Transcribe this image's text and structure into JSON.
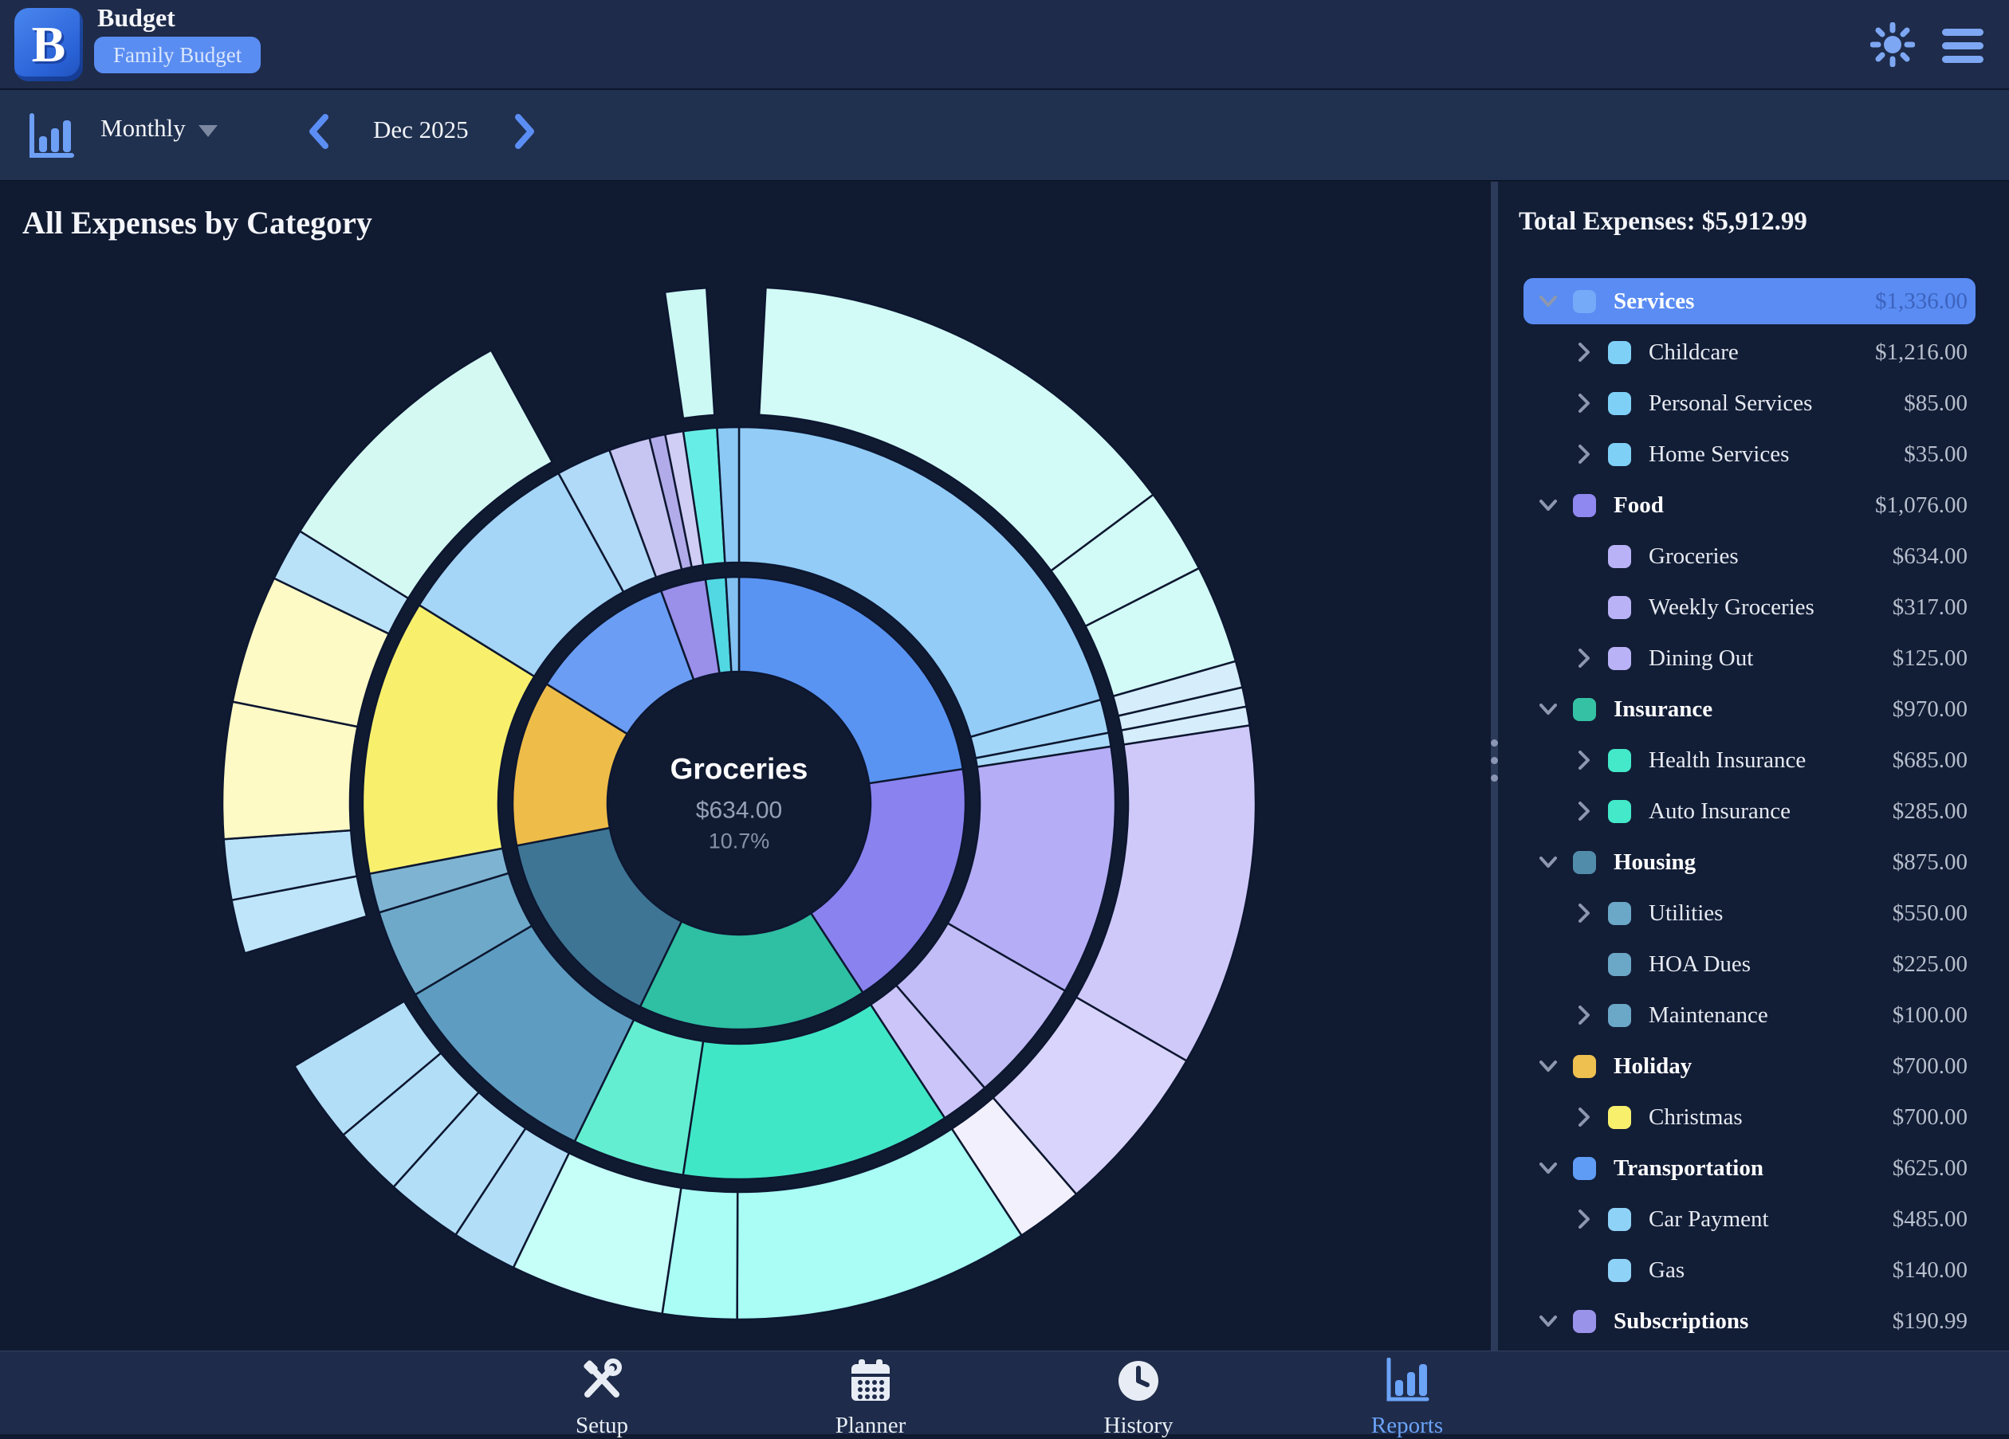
{
  "header": {
    "app_title": "Budget",
    "badge": "Family Budget"
  },
  "toolbar": {
    "view_mode": "Monthly",
    "current_period": "Dec 2025"
  },
  "main": {
    "title": "All Expenses by Category"
  },
  "center_label": {
    "name": "Groceries",
    "value": "$634.00",
    "percent": "10.7%"
  },
  "sidebar": {
    "total_label": "Total Expenses: $5,912.99",
    "rows": [
      {
        "label": "Services",
        "value": "$1,336.00",
        "level": 0,
        "expander": "open",
        "swatch": "#74aaf7",
        "selected": true
      },
      {
        "label": "Childcare",
        "value": "$1,216.00",
        "level": 1,
        "expander": "closed",
        "swatch": "#7fd0f7"
      },
      {
        "label": "Personal Services",
        "value": "$85.00",
        "level": 1,
        "expander": "closed",
        "swatch": "#7fd0f7"
      },
      {
        "label": "Home Services",
        "value": "$35.00",
        "level": 1,
        "expander": "closed",
        "swatch": "#7fd0f7"
      },
      {
        "label": "Food",
        "value": "$1,076.00",
        "level": 0,
        "expander": "open",
        "swatch": "#8f88f0"
      },
      {
        "label": "Groceries",
        "value": "$634.00",
        "level": 1,
        "expander": "none",
        "swatch": "#b9b2f6"
      },
      {
        "label": "Weekly Groceries",
        "value": "$317.00",
        "level": 1,
        "expander": "none",
        "swatch": "#b9b2f6"
      },
      {
        "label": "Dining Out",
        "value": "$125.00",
        "level": 1,
        "expander": "closed",
        "swatch": "#b9b2f6"
      },
      {
        "label": "Insurance",
        "value": "$970.00",
        "level": 0,
        "expander": "open",
        "swatch": "#35c2a4"
      },
      {
        "label": "Health Insurance",
        "value": "$685.00",
        "level": 1,
        "expander": "closed",
        "swatch": "#43e9c9"
      },
      {
        "label": "Auto Insurance",
        "value": "$285.00",
        "level": 1,
        "expander": "closed",
        "swatch": "#43e9c9"
      },
      {
        "label": "Housing",
        "value": "$875.00",
        "level": 0,
        "expander": "open",
        "swatch": "#528cab"
      },
      {
        "label": "Utilities",
        "value": "$550.00",
        "level": 1,
        "expander": "closed",
        "swatch": "#6ba7c7"
      },
      {
        "label": "HOA Dues",
        "value": "$225.00",
        "level": 1,
        "expander": "none",
        "swatch": "#6ba7c7"
      },
      {
        "label": "Maintenance",
        "value": "$100.00",
        "level": 1,
        "expander": "closed",
        "swatch": "#6ba7c7"
      },
      {
        "label": "Holiday",
        "value": "$700.00",
        "level": 0,
        "expander": "open",
        "swatch": "#eec04f"
      },
      {
        "label": "Christmas",
        "value": "$700.00",
        "level": 1,
        "expander": "closed",
        "swatch": "#f8ef6d"
      },
      {
        "label": "Transportation",
        "value": "$625.00",
        "level": 0,
        "expander": "open",
        "swatch": "#5f9cf6"
      },
      {
        "label": "Car Payment",
        "value": "$485.00",
        "level": 1,
        "expander": "closed",
        "swatch": "#8fd2f7"
      },
      {
        "label": "Gas",
        "value": "$140.00",
        "level": 1,
        "expander": "none",
        "swatch": "#8fd2f7"
      },
      {
        "label": "Subscriptions",
        "value": "$190.99",
        "level": 0,
        "expander": "open",
        "swatch": "#9a93ea"
      }
    ]
  },
  "bottom_nav": {
    "items": [
      {
        "label": "Setup",
        "icon": "tools-icon",
        "active": false
      },
      {
        "label": "Planner",
        "icon": "calendar-icon",
        "active": false
      },
      {
        "label": "History",
        "icon": "clock-icon",
        "active": false
      },
      {
        "label": "Reports",
        "icon": "bar-chart-icon",
        "active": true
      }
    ]
  },
  "chart_data": {
    "type": "sunburst",
    "title": "All Expenses by Category",
    "total": 5912.99,
    "legend_position": "right-panel",
    "center": {
      "label": "Groceries",
      "value": "$634.00",
      "percent": "10.7%"
    },
    "rings": {
      "hole": 165,
      "r1": [
        165,
        284
      ],
      "r2": [
        302,
        472
      ],
      "r3": [
        488,
        648
      ]
    },
    "categories": [
      {
        "name": "Services",
        "value": 1336.0,
        "color": "#5a94f2",
        "children": [
          {
            "name": "Childcare",
            "value": 1216.0,
            "color": "#92ccf7",
            "outer": {
              "color": "#d2fbf7",
              "lead_gap": 0.04,
              "fracs": [
                0.68,
                0.13,
                0.15
              ]
            }
          },
          {
            "name": "Personal Services",
            "value": 85.0,
            "color": "#a2d6f9",
            "outer": {
              "color": "#d6edfc",
              "fracs": [
                0.58,
                0.42
              ]
            }
          },
          {
            "name": "Home Services",
            "value": 35.0,
            "color": "#aadaf9",
            "outer": {
              "color": "#d6edfc",
              "fracs": [
                1
              ]
            }
          }
        ]
      },
      {
        "name": "Food",
        "value": 1076.0,
        "color": "#8a82ef",
        "children": [
          {
            "name": "Groceries",
            "value": 634.0,
            "color": "#b5adf5",
            "outer": {
              "color": "#cfc9fa",
              "fracs": [
                1
              ]
            }
          },
          {
            "name": "Weekly Groceries",
            "value": 317.0,
            "color": "#c3bdf7",
            "outer": {
              "color": "#d9d4fb",
              "fracs": [
                1
              ]
            }
          },
          {
            "name": "Dining Out",
            "value": 125.0,
            "color": "#cbc5f9",
            "outer": {
              "color": "#f2f0fd",
              "fracs": [
                1
              ]
            }
          }
        ]
      },
      {
        "name": "Insurance",
        "value": 970.0,
        "color": "#2fbfa3",
        "children": [
          {
            "name": "Health Insurance",
            "value": 685.0,
            "color": "#40e7c6",
            "outer": {
              "color": "#a9fdf4",
              "fracs": [
                0.8,
                0.2
              ]
            }
          },
          {
            "name": "Auto Insurance",
            "value": 285.0,
            "color": "#63eed2",
            "outer": {
              "color": "#c6fef8",
              "fracs": [
                1
              ]
            }
          }
        ]
      },
      {
        "name": "Housing",
        "value": 875.0,
        "color": "#3e7595",
        "children": [
          {
            "name": "Utilities",
            "value": 550.0,
            "color": "#5e9dc1",
            "outer": {
              "color": "#b2def8",
              "fracs": [
                0.22,
                0.26,
                0.24,
                0.28
              ]
            }
          },
          {
            "name": "HOA Dues",
            "value": 225.0,
            "color": "#6fa9ca"
          },
          {
            "name": "Maintenance",
            "value": 100.0,
            "color": "#7eb4d2",
            "outer": {
              "color": "#bfe5fa",
              "fracs": [
                1
              ]
            }
          }
        ]
      },
      {
        "name": "Holiday",
        "value": 700.0,
        "color": "#eebc49",
        "children": [
          {
            "name": "Christmas",
            "value": 700.0,
            "color": "#f8f06d",
            "outer": {
              "colors": [
                "#b9e2f9",
                "#fdfac5",
                "#fdfac5",
                "#b9e2f9"
              ],
              "fracs": [
                0.16,
                0.36,
                0.34,
                0.14
              ]
            }
          }
        ]
      },
      {
        "name": "Transportation",
        "value": 625.0,
        "color": "#6b9df4",
        "children": [
          {
            "name": "Car Payment",
            "value": 485.0,
            "color": "#a5d5f7",
            "outer": {
              "color": "#d4f9f3",
              "fracs": [
                1
              ]
            }
          },
          {
            "name": "Gas",
            "value": 140.0,
            "color": "#b0daf8"
          }
        ]
      },
      {
        "name": "Subscriptions",
        "value": 190.99,
        "color": "#9a8fe9",
        "children": [
          {
            "name": "",
            "value": 105.0,
            "color": "#c7c5f2"
          },
          {
            "name": "",
            "value": 40.0,
            "color": "#b2abe9"
          },
          {
            "name": "",
            "value": 45.99,
            "color": "#d0cef5"
          }
        ]
      },
      {
        "name": "",
        "value": 85.0,
        "color": "#52d8e3",
        "children": [
          {
            "name": "",
            "value": 85.0,
            "color": "#66eee6",
            "outer": {
              "color": "#ccf9f4",
              "lead_gap": 0.05,
              "fracs": [
                0.9
              ]
            }
          }
        ]
      },
      {
        "name": "",
        "value": 55.0,
        "color": "#82c1f1",
        "children": [
          {
            "name": "",
            "value": 55.0,
            "color": "#8cc9f4"
          }
        ]
      }
    ]
  }
}
